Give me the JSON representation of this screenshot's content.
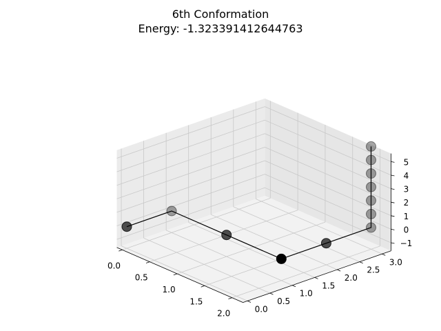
{
  "chart_data": {
    "type": "scatter",
    "projection": "3d",
    "title": "6th Conformation",
    "subtitle": "Energy: -1.323391412644763",
    "xlabel": "",
    "ylabel": "",
    "zlabel": "",
    "grid": true,
    "x_ticks": [
      "0.0",
      "0.5",
      "1.0",
      "1.5",
      "2.0"
    ],
    "y_ticks": [
      "0.0",
      "0.5",
      "1.0",
      "1.5",
      "2.0",
      "2.5",
      "3.0"
    ],
    "z_ticks": [
      "−1",
      "0",
      "1",
      "2",
      "3",
      "4",
      "5"
    ],
    "xlim": [
      -0.1,
      2.2
    ],
    "ylim": [
      -0.1,
      3.2
    ],
    "zlim": [
      -1.6,
      5.6
    ],
    "series": [
      {
        "marker_color": "#000000",
        "line_color": "#000000",
        "points": [
          {
            "x": 0,
            "y": 0,
            "z": 0
          },
          {
            "x": 0,
            "y": 1,
            "z": 0
          },
          {
            "x": 1,
            "y": 1,
            "z": 0
          },
          {
            "x": 2,
            "y": 1,
            "z": 0
          },
          {
            "x": 2,
            "y": 2,
            "z": 0
          },
          {
            "x": 2,
            "y": 3,
            "z": 0
          },
          {
            "x": 2,
            "y": 3,
            "z": 1
          },
          {
            "x": 2,
            "y": 3,
            "z": 2
          },
          {
            "x": 2,
            "y": 3,
            "z": 3
          },
          {
            "x": 2,
            "y": 3,
            "z": 4
          },
          {
            "x": 2,
            "y": 3,
            "z": 5
          },
          {
            "x": 2,
            "y": 3,
            "z": 6
          }
        ]
      }
    ]
  }
}
